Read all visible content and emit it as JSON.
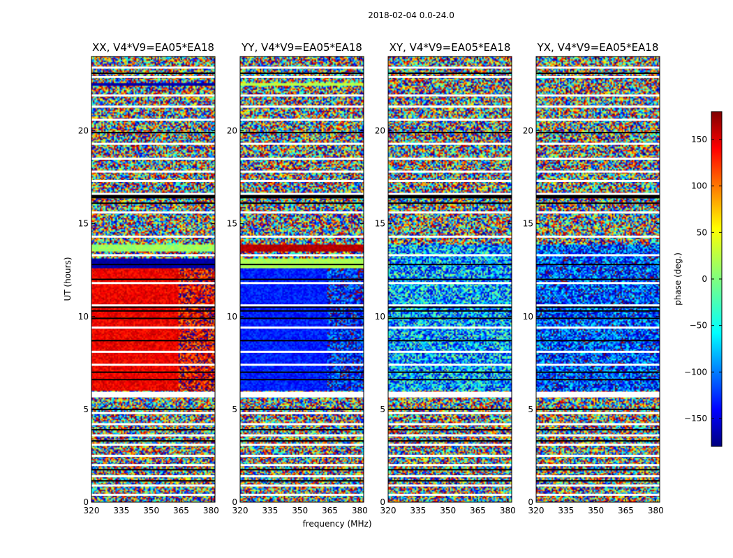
{
  "figure_title": "2018-02-04 0.0-24.0",
  "colors": {
    "jet": [
      "#00007f",
      "#0000ff",
      "#007fff",
      "#00ffff",
      "#7fff7f",
      "#ffff00",
      "#ff7f00",
      "#ff0000",
      "#7f0000"
    ],
    "background": "#ffffff"
  },
  "chart_data": [
    {
      "type": "heatmap",
      "title": "XX, V4*V9=EA05*EA18",
      "xlabel": "frequency (MHz)",
      "ylabel": "UT (hours)",
      "xlim": [
        320,
        382
      ],
      "ylim": [
        0,
        24
      ],
      "xticks": [
        320,
        335,
        350,
        365,
        380
      ],
      "yticks": [
        0,
        5,
        10,
        15,
        20
      ],
      "regions": [
        {
          "ut": [
            6.0,
            12.6
          ],
          "freq": [
            320,
            364
          ],
          "phase": 140,
          "spread": 22
        },
        {
          "ut": [
            6.0,
            12.6
          ],
          "freq": [
            364,
            382
          ],
          "phase": 140,
          "spread": 70
        },
        {
          "ut": [
            12.6,
            13.1
          ],
          "freq": [
            320,
            382
          ],
          "phase": -165,
          "spread": 10
        },
        {
          "ut": [
            13.5,
            13.9
          ],
          "freq": [
            320,
            382
          ],
          "phase": 10,
          "spread": 15
        },
        {
          "ut": [
            22.4,
            22.6
          ],
          "freq": [
            320,
            382
          ],
          "phase": -165,
          "spread": 10
        }
      ]
    },
    {
      "type": "heatmap",
      "title": "YY, V4*V9=EA05*EA18",
      "xlabel": "frequency (MHz)",
      "ylabel": "UT (hours)",
      "xlim": [
        320,
        382
      ],
      "ylim": [
        0,
        24
      ],
      "xticks": [
        320,
        335,
        350,
        365,
        380
      ],
      "yticks": [
        0,
        5,
        10,
        15,
        20
      ],
      "regions": [
        {
          "ut": [
            6.0,
            12.6
          ],
          "freq": [
            320,
            364
          ],
          "phase": -125,
          "spread": 22
        },
        {
          "ut": [
            6.0,
            12.6
          ],
          "freq": [
            364,
            382
          ],
          "phase": -125,
          "spread": 70
        },
        {
          "ut": [
            12.6,
            13.1
          ],
          "freq": [
            320,
            382
          ],
          "phase": 15,
          "spread": 10
        },
        {
          "ut": [
            13.5,
            13.9
          ],
          "freq": [
            320,
            382
          ],
          "phase": 160,
          "spread": 12
        },
        {
          "ut": [
            22.4,
            22.6
          ],
          "freq": [
            320,
            382
          ],
          "phase": 20,
          "spread": 10
        }
      ]
    },
    {
      "type": "heatmap",
      "title": "XY, V4*V9=EA05*EA18",
      "xlabel": "frequency (MHz)",
      "ylabel": "UT (hours)",
      "xlim": [
        320,
        382
      ],
      "ylim": [
        0,
        24
      ],
      "xticks": [
        320,
        335,
        350,
        365,
        380
      ],
      "yticks": [
        0,
        5,
        10,
        15,
        20
      ],
      "regions": [
        {
          "ut": [
            6.0,
            13.9
          ],
          "freq": [
            320,
            382
          ],
          "phase": -75,
          "spread": 95
        }
      ]
    },
    {
      "type": "heatmap",
      "title": "YX, V4*V9=EA05*EA18",
      "xlabel": "frequency (MHz)",
      "ylabel": "UT (hours)",
      "xlim": [
        320,
        382
      ],
      "ylim": [
        0,
        24
      ],
      "xticks": [
        320,
        335,
        350,
        365,
        380
      ],
      "yticks": [
        0,
        5,
        10,
        15,
        20
      ],
      "regions": [
        {
          "ut": [
            6.0,
            13.9
          ],
          "freq": [
            320,
            382
          ],
          "phase": -110,
          "spread": 80
        }
      ]
    }
  ],
  "flagged_rows_ut": [
    0.4,
    0.9,
    1.4,
    2.0,
    2.5,
    3.1,
    3.6,
    4.2,
    4.8,
    5.7,
    7.4,
    8.1,
    9.4,
    10.6,
    11.8,
    13.3,
    14.3,
    15.6,
    16.6,
    17.3,
    17.8,
    18.5,
    19.3,
    20.6,
    21.3,
    21.9,
    22.9,
    23.4
  ],
  "dead_rows_ut": [
    1.15,
    1.75,
    3.3,
    3.9,
    5.0,
    6.6,
    7.0,
    8.7,
    9.9,
    10.3,
    10.5,
    12.0,
    12.8,
    16.1,
    16.4,
    19.9,
    23.1
  ],
  "colorbar": {
    "label": "phase (deg.)",
    "range": [
      -180,
      180
    ],
    "ticks": [
      -150,
      -100,
      -50,
      0,
      50,
      100,
      150
    ],
    "tick_labels": [
      "−150",
      "−100",
      "−50",
      "0",
      "50",
      "100",
      "150"
    ]
  }
}
